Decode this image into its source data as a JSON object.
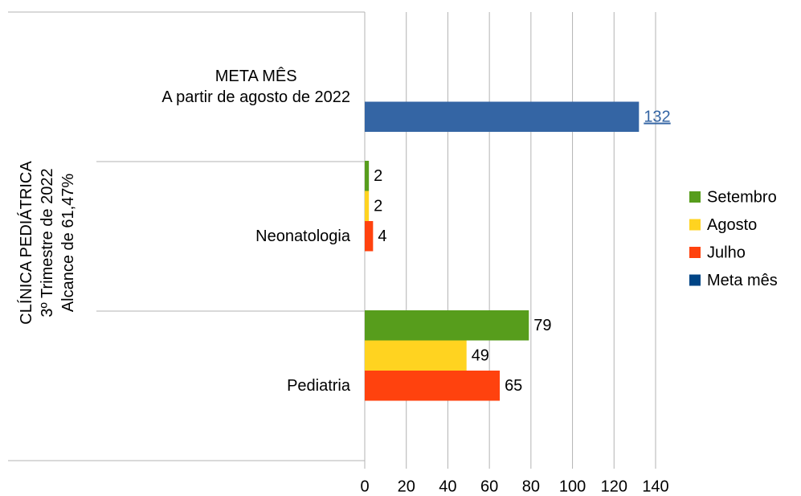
{
  "chart_data": {
    "type": "hbar",
    "y_label": "CLÍNICA PEDIÁTRICA\n3º Trimestre de 2022\nAlcance de 61,47%",
    "categories": [
      "META MÊS\nA partir de agosto de 2022",
      "Neonatologia",
      "Pediatria"
    ],
    "series": [
      {
        "name": "Setembro",
        "color": "#579d1c",
        "values": [
          null,
          2,
          79
        ]
      },
      {
        "name": "Agosto",
        "color": "#ffd320",
        "values": [
          null,
          2,
          49
        ]
      },
      {
        "name": "Julho",
        "color": "#ff420e",
        "values": [
          null,
          4,
          65
        ]
      },
      {
        "name": "Meta mês",
        "color": "#3465a4",
        "values": [
          132,
          null,
          null
        ]
      }
    ],
    "xlim": [
      0,
      140
    ],
    "xticks": [
      0,
      20,
      40,
      60,
      80,
      100,
      120,
      140
    ],
    "grid": true,
    "legend": "right"
  }
}
